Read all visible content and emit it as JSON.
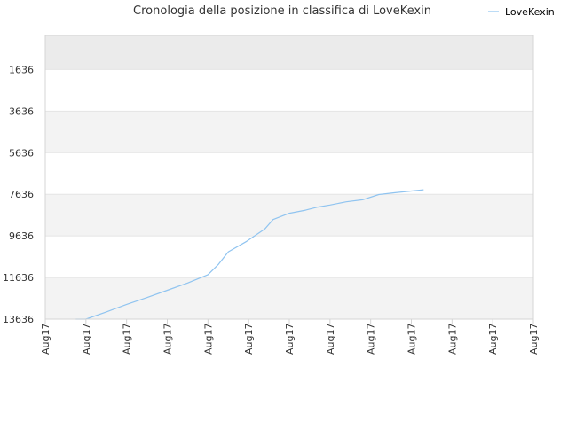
{
  "chart_data": {
    "type": "line",
    "title": "Cronologia della posizione in classifica di LoveKexin",
    "legend": {
      "position": "top-right"
    },
    "series": [
      {
        "name": "LoveKexin",
        "color": "#90c4f0",
        "values": [
          13636,
          13636,
          13290,
          12930,
          12600,
          12250,
          11900,
          11500,
          11020,
          10400,
          9900,
          9300,
          8850,
          8550,
          8400,
          8250,
          8150,
          8000,
          7900,
          7650,
          7560,
          7420
        ]
      }
    ],
    "x": [
      0.75,
      1.0,
      1.5,
      2.0,
      2.5,
      3.0,
      3.5,
      4.0,
      4.25,
      4.5,
      4.95,
      5.4,
      5.6,
      6.0,
      6.4,
      6.7,
      7.0,
      7.4,
      7.8,
      8.2,
      8.6,
      9.3
    ],
    "x_tick_labels": [
      "Aug17",
      "Aug17",
      "Aug17",
      "Aug17",
      "Aug17",
      "Aug17",
      "Aug17",
      "Aug17",
      "Aug17",
      "Aug17",
      "Aug17",
      "Aug17",
      "Aug17"
    ],
    "y_ticks": [
      1636,
      3636,
      5636,
      7636,
      9636,
      11636,
      13636
    ],
    "y_tick_labels": [
      "1636",
      "3636",
      "5636",
      "7636",
      "9636",
      "11636",
      "13636"
    ],
    "ylim": [
      13636,
      0
    ],
    "y_inverted": true,
    "grid": true,
    "colors": {
      "band_dark": "#f3f3f3",
      "band_light": "#ffffff",
      "band_top": "#ebebeb",
      "gridline": "#e4e4e4",
      "axis": "#d4d4d4"
    }
  }
}
